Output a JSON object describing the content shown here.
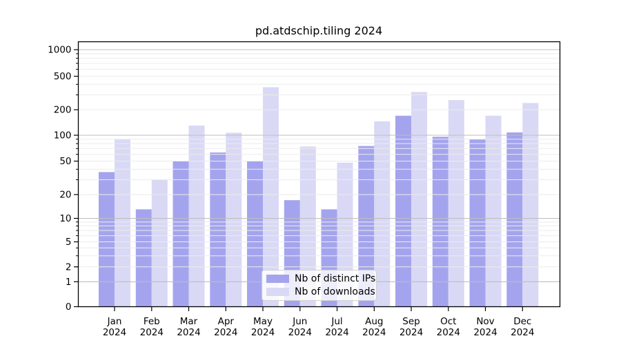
{
  "chart_data": {
    "type": "bar",
    "title": "pd.atdschip.tiling 2024",
    "xlabel": "",
    "ylabel": "",
    "year": "2024",
    "months": [
      "Jan",
      "Feb",
      "Mar",
      "Apr",
      "May",
      "Jun",
      "Jul",
      "Aug",
      "Sep",
      "Oct",
      "Nov",
      "Dec"
    ],
    "categories": [
      "Jan 2024",
      "Feb 2024",
      "Mar 2024",
      "Apr 2024",
      "May 2024",
      "Jun 2024",
      "Jul 2024",
      "Aug 2024",
      "Sep 2024",
      "Oct 2024",
      "Nov 2024",
      "Dec 2024"
    ],
    "series": [
      {
        "name": "Nb of distinct IPs",
        "color": "#a4a4ee",
        "values": [
          37,
          13,
          50,
          63,
          50,
          17,
          13,
          75,
          170,
          96,
          90,
          108
        ]
      },
      {
        "name": "Nb of downloads",
        "color": "#d9d9f6",
        "values": [
          90,
          30,
          130,
          107,
          370,
          74,
          48,
          146,
          325,
          260,
          170,
          240
        ]
      }
    ],
    "yscale": "symlog",
    "yticks": [
      0,
      1,
      2,
      5,
      10,
      20,
      50,
      100,
      200,
      500,
      1000
    ],
    "ylim": [
      0,
      1300
    ],
    "grid": true,
    "legend_position": "lower center"
  }
}
